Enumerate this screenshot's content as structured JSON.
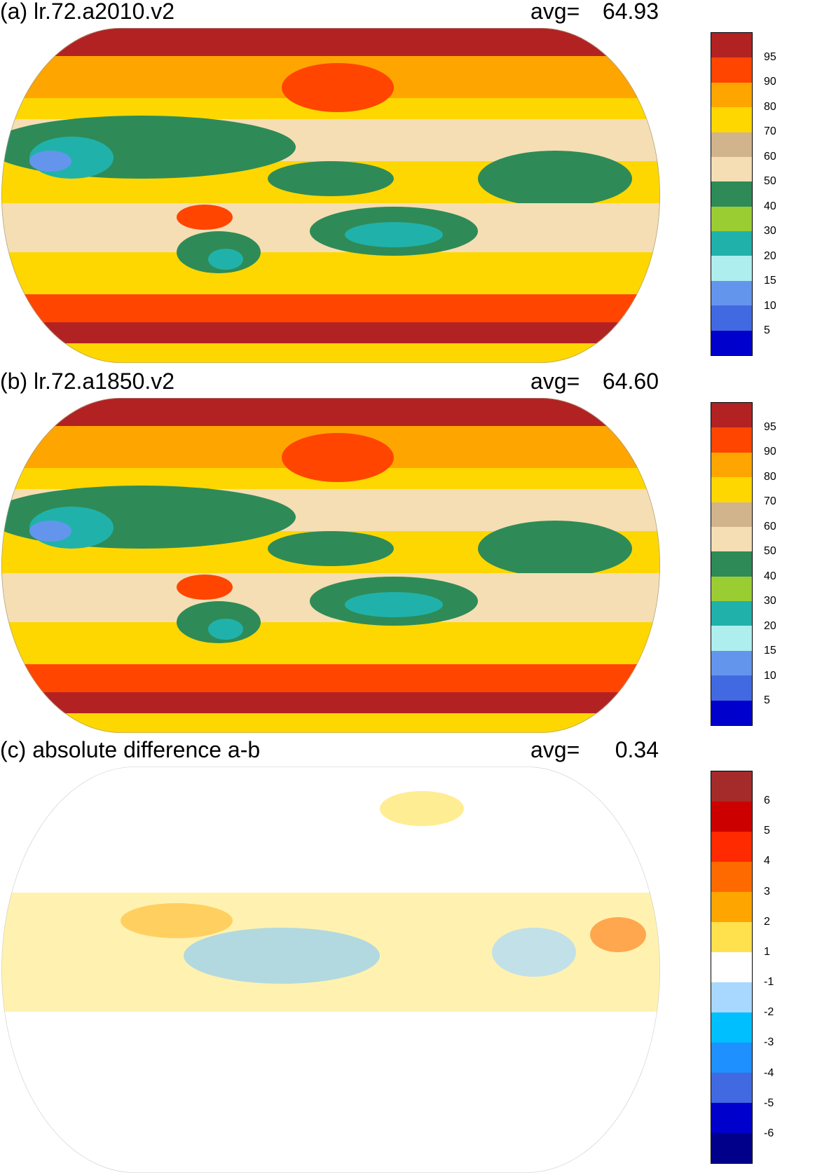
{
  "panels": [
    {
      "title": "(a) lr.72.a2010.v2",
      "avg_label": "avg=",
      "avg_value": "64.93",
      "colorbar": {
        "labels": [
          "95",
          "90",
          "80",
          "70",
          "60",
          "50",
          "40",
          "30",
          "20",
          "15",
          "10",
          "5"
        ],
        "colors": [
          "#b22222",
          "#ff4500",
          "#ffa500",
          "#ffd700",
          "#d2b48c",
          "#f5deb3",
          "#2e8b57",
          "#9acd32",
          "#20b2aa",
          "#afeeee",
          "#6495ed",
          "#4169e1",
          "#0000cd"
        ]
      }
    },
    {
      "title": "(b) lr.72.a1850.v2",
      "avg_label": "avg=",
      "avg_value": "64.60",
      "colorbar": {
        "labels": [
          "95",
          "90",
          "80",
          "70",
          "60",
          "50",
          "40",
          "30",
          "20",
          "15",
          "10",
          "5"
        ],
        "colors": [
          "#b22222",
          "#ff4500",
          "#ffa500",
          "#ffd700",
          "#d2b48c",
          "#f5deb3",
          "#2e8b57",
          "#9acd32",
          "#20b2aa",
          "#afeeee",
          "#6495ed",
          "#4169e1",
          "#0000cd"
        ]
      }
    },
    {
      "title": "(c) absolute difference a-b",
      "avg_label": "avg=",
      "avg_value": "0.34",
      "colorbar": {
        "labels": [
          "6",
          "5",
          "4",
          "3",
          "2",
          "1",
          "-1",
          "-2",
          "-3",
          "-4",
          "-5",
          "-6"
        ],
        "colors": [
          "#a52a2a",
          "#cd0000",
          "#ff2a00",
          "#ff6a00",
          "#ffa500",
          "#ffe14d",
          "#ffffff",
          "#a8d8ff",
          "#00bfff",
          "#1e90ff",
          "#4169e1",
          "#0000cd",
          "#00008b"
        ]
      }
    }
  ]
}
